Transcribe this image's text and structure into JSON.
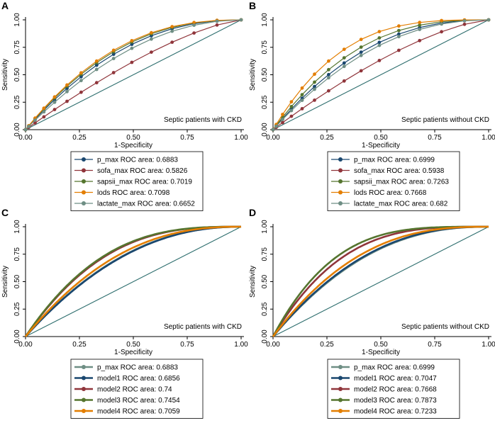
{
  "figure": {
    "description_free": true
  },
  "chart_data": [
    {
      "type": "line",
      "panel_label": "A",
      "annotation": "Septic patients with CKD",
      "xlabel": "1-Specificity",
      "ylabel": "Sensitivity",
      "xlim": [
        0,
        1
      ],
      "ylim": [
        0,
        1
      ],
      "xticks": [
        "0.00",
        "0.25",
        "0.50",
        "0.75",
        "1.00"
      ],
      "yticks": [
        "0.00",
        "0.25",
        "0.50",
        "0.75",
        "1.00"
      ],
      "markers": true,
      "series": [
        {
          "name": "p_max",
          "legend": "p_max ROC area: 0.6883",
          "auc": 0.6883,
          "color": "#1a476f"
        },
        {
          "name": "sofa_max",
          "legend": "sofa_max ROC area: 0.5826",
          "auc": 0.5826,
          "color": "#90353b"
        },
        {
          "name": "sapsii_max",
          "legend": "sapsii_max ROC area: 0.7019",
          "auc": 0.7019,
          "color": "#55752f"
        },
        {
          "name": "lods",
          "legend": "lods ROC area: 0.7098",
          "auc": 0.7098,
          "color": "#e37e00"
        },
        {
          "name": "lactate_max",
          "legend": "lactate_max ROC area: 0.6652",
          "auc": 0.6652,
          "color": "#6e8e84"
        }
      ]
    },
    {
      "type": "line",
      "panel_label": "B",
      "annotation": "Septic patients without CKD",
      "xlabel": "1-Specificity",
      "ylabel": "Sensitivity",
      "xlim": [
        0,
        1
      ],
      "ylim": [
        0,
        1
      ],
      "xticks": [
        "0.00",
        "0.25",
        "0.50",
        "0.75",
        "1.00"
      ],
      "yticks": [
        "0.00",
        "0.25",
        "0.50",
        "0.75",
        "1.00"
      ],
      "markers": true,
      "series": [
        {
          "name": "p_max",
          "legend": "p_max ROC area: 0.6999",
          "auc": 0.6999,
          "color": "#1a476f"
        },
        {
          "name": "sofa_max",
          "legend": "sofa_max ROC area: 0.5938",
          "auc": 0.5938,
          "color": "#90353b"
        },
        {
          "name": "sapsii_max",
          "legend": "sapsii_max ROC area: 0.7263",
          "auc": 0.7263,
          "color": "#55752f"
        },
        {
          "name": "lods",
          "legend": "lods ROC area: 0.7668",
          "auc": 0.7668,
          "color": "#e37e00"
        },
        {
          "name": "lactate_max",
          "legend": "lactate_max ROC area: 0.682",
          "auc": 0.682,
          "color": "#6e8e84"
        }
      ]
    },
    {
      "type": "line",
      "panel_label": "C",
      "annotation": "Septic patients with CKD",
      "xlabel": "1-Specificity",
      "ylabel": "Sensitivity",
      "xlim": [
        0,
        1
      ],
      "ylim": [
        0,
        1
      ],
      "xticks": [
        "0.00",
        "0.25",
        "0.50",
        "0.75",
        "1.00"
      ],
      "yticks": [
        "0.00",
        "0.25",
        "0.50",
        "0.75",
        "1.00"
      ],
      "markers": false,
      "series": [
        {
          "name": "p_max",
          "legend": "p_max ROC area: 0.6883",
          "auc": 0.6883,
          "color": "#6e8e84"
        },
        {
          "name": "model1",
          "legend": "model1 ROC area: 0.6856",
          "auc": 0.6856,
          "color": "#1a476f"
        },
        {
          "name": "model2",
          "legend": "model2 ROC area: 0.74",
          "auc": 0.74,
          "color": "#90353b"
        },
        {
          "name": "model3",
          "legend": "model3 ROC area: 0.7454",
          "auc": 0.7454,
          "color": "#55752f"
        },
        {
          "name": "model4",
          "legend": "model4 ROC area: 0.7059",
          "auc": 0.7059,
          "color": "#e37e00"
        }
      ]
    },
    {
      "type": "line",
      "panel_label": "D",
      "annotation": "Septic patients without CKD",
      "xlabel": "1-Specificity",
      "ylabel": "Sensitivity",
      "xlim": [
        0,
        1
      ],
      "ylim": [
        0,
        1
      ],
      "xticks": [
        "0.00",
        "0.25",
        "0.50",
        "0.75",
        "1.00"
      ],
      "yticks": [
        "0.00",
        "0.25",
        "0.50",
        "0.75",
        "1.00"
      ],
      "markers": false,
      "series": [
        {
          "name": "p_max",
          "legend": "p_max ROC area: 0.6999",
          "auc": 0.6999,
          "color": "#6e8e84"
        },
        {
          "name": "model1",
          "legend": "model1 ROC area: 0.7047",
          "auc": 0.7047,
          "color": "#1a476f"
        },
        {
          "name": "model2",
          "legend": "model2 ROC area: 0.7668",
          "auc": 0.7668,
          "color": "#90353b"
        },
        {
          "name": "model3",
          "legend": "model3 ROC area: 0.7873",
          "auc": 0.7873,
          "color": "#55752f"
        },
        {
          "name": "model4",
          "legend": "model4 ROC area: 0.7233",
          "auc": 0.7233,
          "color": "#e37e00"
        }
      ]
    }
  ],
  "reference_line_color": "#2e6e6e"
}
